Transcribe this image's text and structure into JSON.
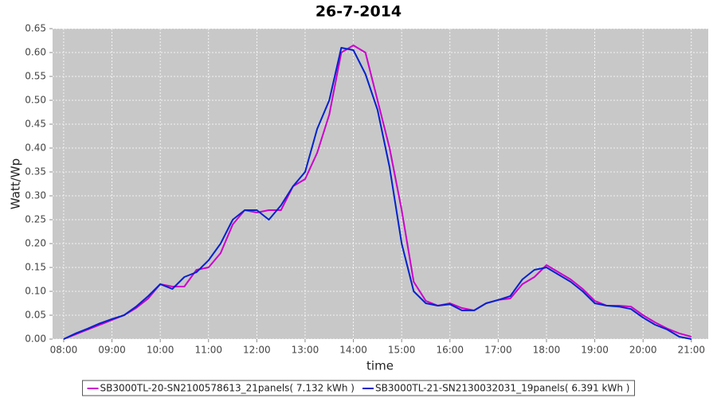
{
  "chart_data": {
    "type": "line",
    "title": "26-7-2014",
    "x_label": "time",
    "y_label": "Watt/Wp",
    "x": [
      8,
      8.25,
      8.5,
      8.75,
      9,
      9.25,
      9.5,
      9.75,
      10,
      10.25,
      10.5,
      10.75,
      11,
      11.25,
      11.5,
      11.75,
      12,
      12.25,
      12.5,
      12.75,
      13,
      13.25,
      13.5,
      13.75,
      14,
      14.25,
      14.5,
      14.75,
      15,
      15.25,
      15.5,
      15.75,
      16,
      16.25,
      16.5,
      16.75,
      17,
      17.25,
      17.5,
      17.75,
      18,
      18.25,
      18.5,
      18.75,
      19,
      19.25,
      19.5,
      19.75,
      20,
      20.25,
      20.5,
      20.75,
      21
    ],
    "series": [
      {
        "name": "SB3000TL-20-SN2100578613_21panels( 7.132 kWh )",
        "color": "#cc00cc",
        "values": [
          0,
          0.01,
          0.02,
          0.03,
          0.04,
          0.05,
          0.065,
          0.085,
          0.115,
          0.11,
          0.11,
          0.145,
          0.15,
          0.18,
          0.24,
          0.27,
          0.265,
          0.27,
          0.27,
          0.32,
          0.335,
          0.39,
          0.47,
          0.6,
          0.615,
          0.6,
          0.5,
          0.4,
          0.27,
          0.12,
          0.08,
          0.07,
          0.075,
          0.065,
          0.06,
          0.075,
          0.082,
          0.085,
          0.115,
          0.13,
          0.155,
          0.14,
          0.125,
          0.105,
          0.08,
          0.07,
          0.07,
          0.068,
          0.05,
          0.035,
          0.022,
          0.012,
          0.005
        ]
      },
      {
        "name": "SB3000TL-21-SN2130032031_19panels( 6.391 kWh )",
        "color": "#0022cc",
        "values": [
          0,
          0.012,
          0.022,
          0.033,
          0.042,
          0.05,
          0.068,
          0.09,
          0.115,
          0.105,
          0.13,
          0.14,
          0.165,
          0.2,
          0.25,
          0.27,
          0.27,
          0.25,
          0.28,
          0.32,
          0.35,
          0.44,
          0.5,
          0.61,
          0.605,
          0.555,
          0.48,
          0.36,
          0.2,
          0.1,
          0.075,
          0.07,
          0.073,
          0.06,
          0.06,
          0.075,
          0.082,
          0.09,
          0.125,
          0.145,
          0.15,
          0.135,
          0.12,
          0.1,
          0.075,
          0.07,
          0.068,
          0.063,
          0.045,
          0.03,
          0.02,
          0.005,
          0
        ]
      }
    ],
    "xlim": [
      7.77,
      21.35
    ],
    "xticks": [
      {
        "value": 8,
        "label": "08:00"
      },
      {
        "value": 9,
        "label": "09:00"
      },
      {
        "value": 10,
        "label": "10:00"
      },
      {
        "value": 11,
        "label": "11:00"
      },
      {
        "value": 12,
        "label": "12:00"
      },
      {
        "value": 13,
        "label": "13:00"
      },
      {
        "value": 14,
        "label": "14:00"
      },
      {
        "value": 15,
        "label": "15:00"
      },
      {
        "value": 16,
        "label": "16:00"
      },
      {
        "value": 17,
        "label": "17:00"
      },
      {
        "value": 18,
        "label": "18:00"
      },
      {
        "value": 19,
        "label": "19:00"
      },
      {
        "value": 20,
        "label": "20:00"
      },
      {
        "value": 21,
        "label": "21:00"
      }
    ],
    "ylim": [
      0,
      0.65
    ],
    "yticks": [
      {
        "value": 0,
        "label": "0.00"
      },
      {
        "value": 0.05,
        "label": "0.05"
      },
      {
        "value": 0.1,
        "label": "0.10"
      },
      {
        "value": 0.15,
        "label": "0.15"
      },
      {
        "value": 0.2,
        "label": "0.20"
      },
      {
        "value": 0.25,
        "label": "0.25"
      },
      {
        "value": 0.3,
        "label": "0.30"
      },
      {
        "value": 0.35,
        "label": "0.35"
      },
      {
        "value": 0.4,
        "label": "0.40"
      },
      {
        "value": 0.45,
        "label": "0.45"
      },
      {
        "value": 0.5,
        "label": "0.50"
      },
      {
        "value": 0.55,
        "label": "0.55"
      },
      {
        "value": 0.6,
        "label": "0.60"
      },
      {
        "value": 0.65,
        "label": "0.65"
      }
    ],
    "grid": true,
    "legend": "bottom"
  }
}
